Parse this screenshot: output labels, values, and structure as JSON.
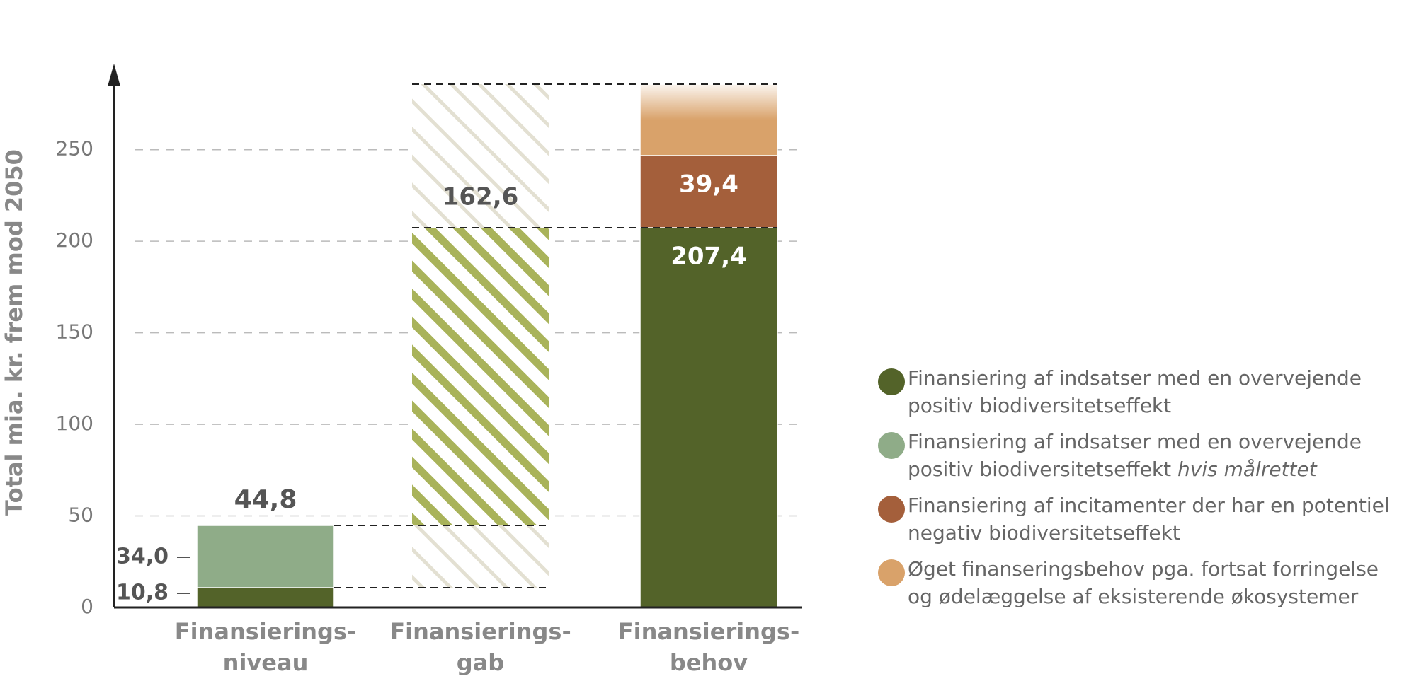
{
  "chart_data": {
    "type": "bar",
    "y_label": "Total mia. kr. frem mod 2050",
    "categories": [
      [
        "Finansierings-",
        "niveau"
      ],
      [
        "Finansierings-",
        "gab"
      ],
      [
        "Finansierings-",
        "behov"
      ]
    ],
    "series": [
      {
        "name": "Finansiering af indsatser med en overvejende positiv biodiversitetseffekt",
        "color": "#536329",
        "values": [
          10.8,
          null,
          207.4
        ],
        "value_labels": [
          "10,8",
          null,
          "207,4"
        ]
      },
      {
        "name": "Finansiering af indsatser med en overvejende positiv biodiversitetseffekt",
        "name_emphasis": "hvis målrettet",
        "color": "#8fac88",
        "values": [
          34.0,
          null,
          null
        ],
        "value_labels": [
          "34,0",
          null,
          null
        ]
      },
      {
        "name": "Finansiering af incitamenter der har en potentiel negativ biodiversitetseffekt",
        "color": "#a45f3b",
        "values": [
          null,
          null,
          39.4
        ],
        "value_labels": [
          null,
          null,
          "39,4"
        ]
      },
      {
        "name": "Øget finanseringsbehov pga. fortsat forringelse og ødelæggelse af eksisterende økosystemer",
        "color": "#d9a26a",
        "values": [
          null,
          null,
          39
        ]
      }
    ],
    "gap": {
      "color": "#a9b35a",
      "values": [
        null,
        162.6,
        null
      ],
      "value_labels": [
        null,
        "162,6",
        null
      ]
    },
    "totals": [
      44.8,
      null,
      null
    ],
    "total_labels": [
      "44,8",
      null,
      null
    ],
    "ylim": [
      0,
      297
    ],
    "yticks": [
      0,
      50,
      100,
      150,
      200,
      250
    ],
    "grid": true
  }
}
